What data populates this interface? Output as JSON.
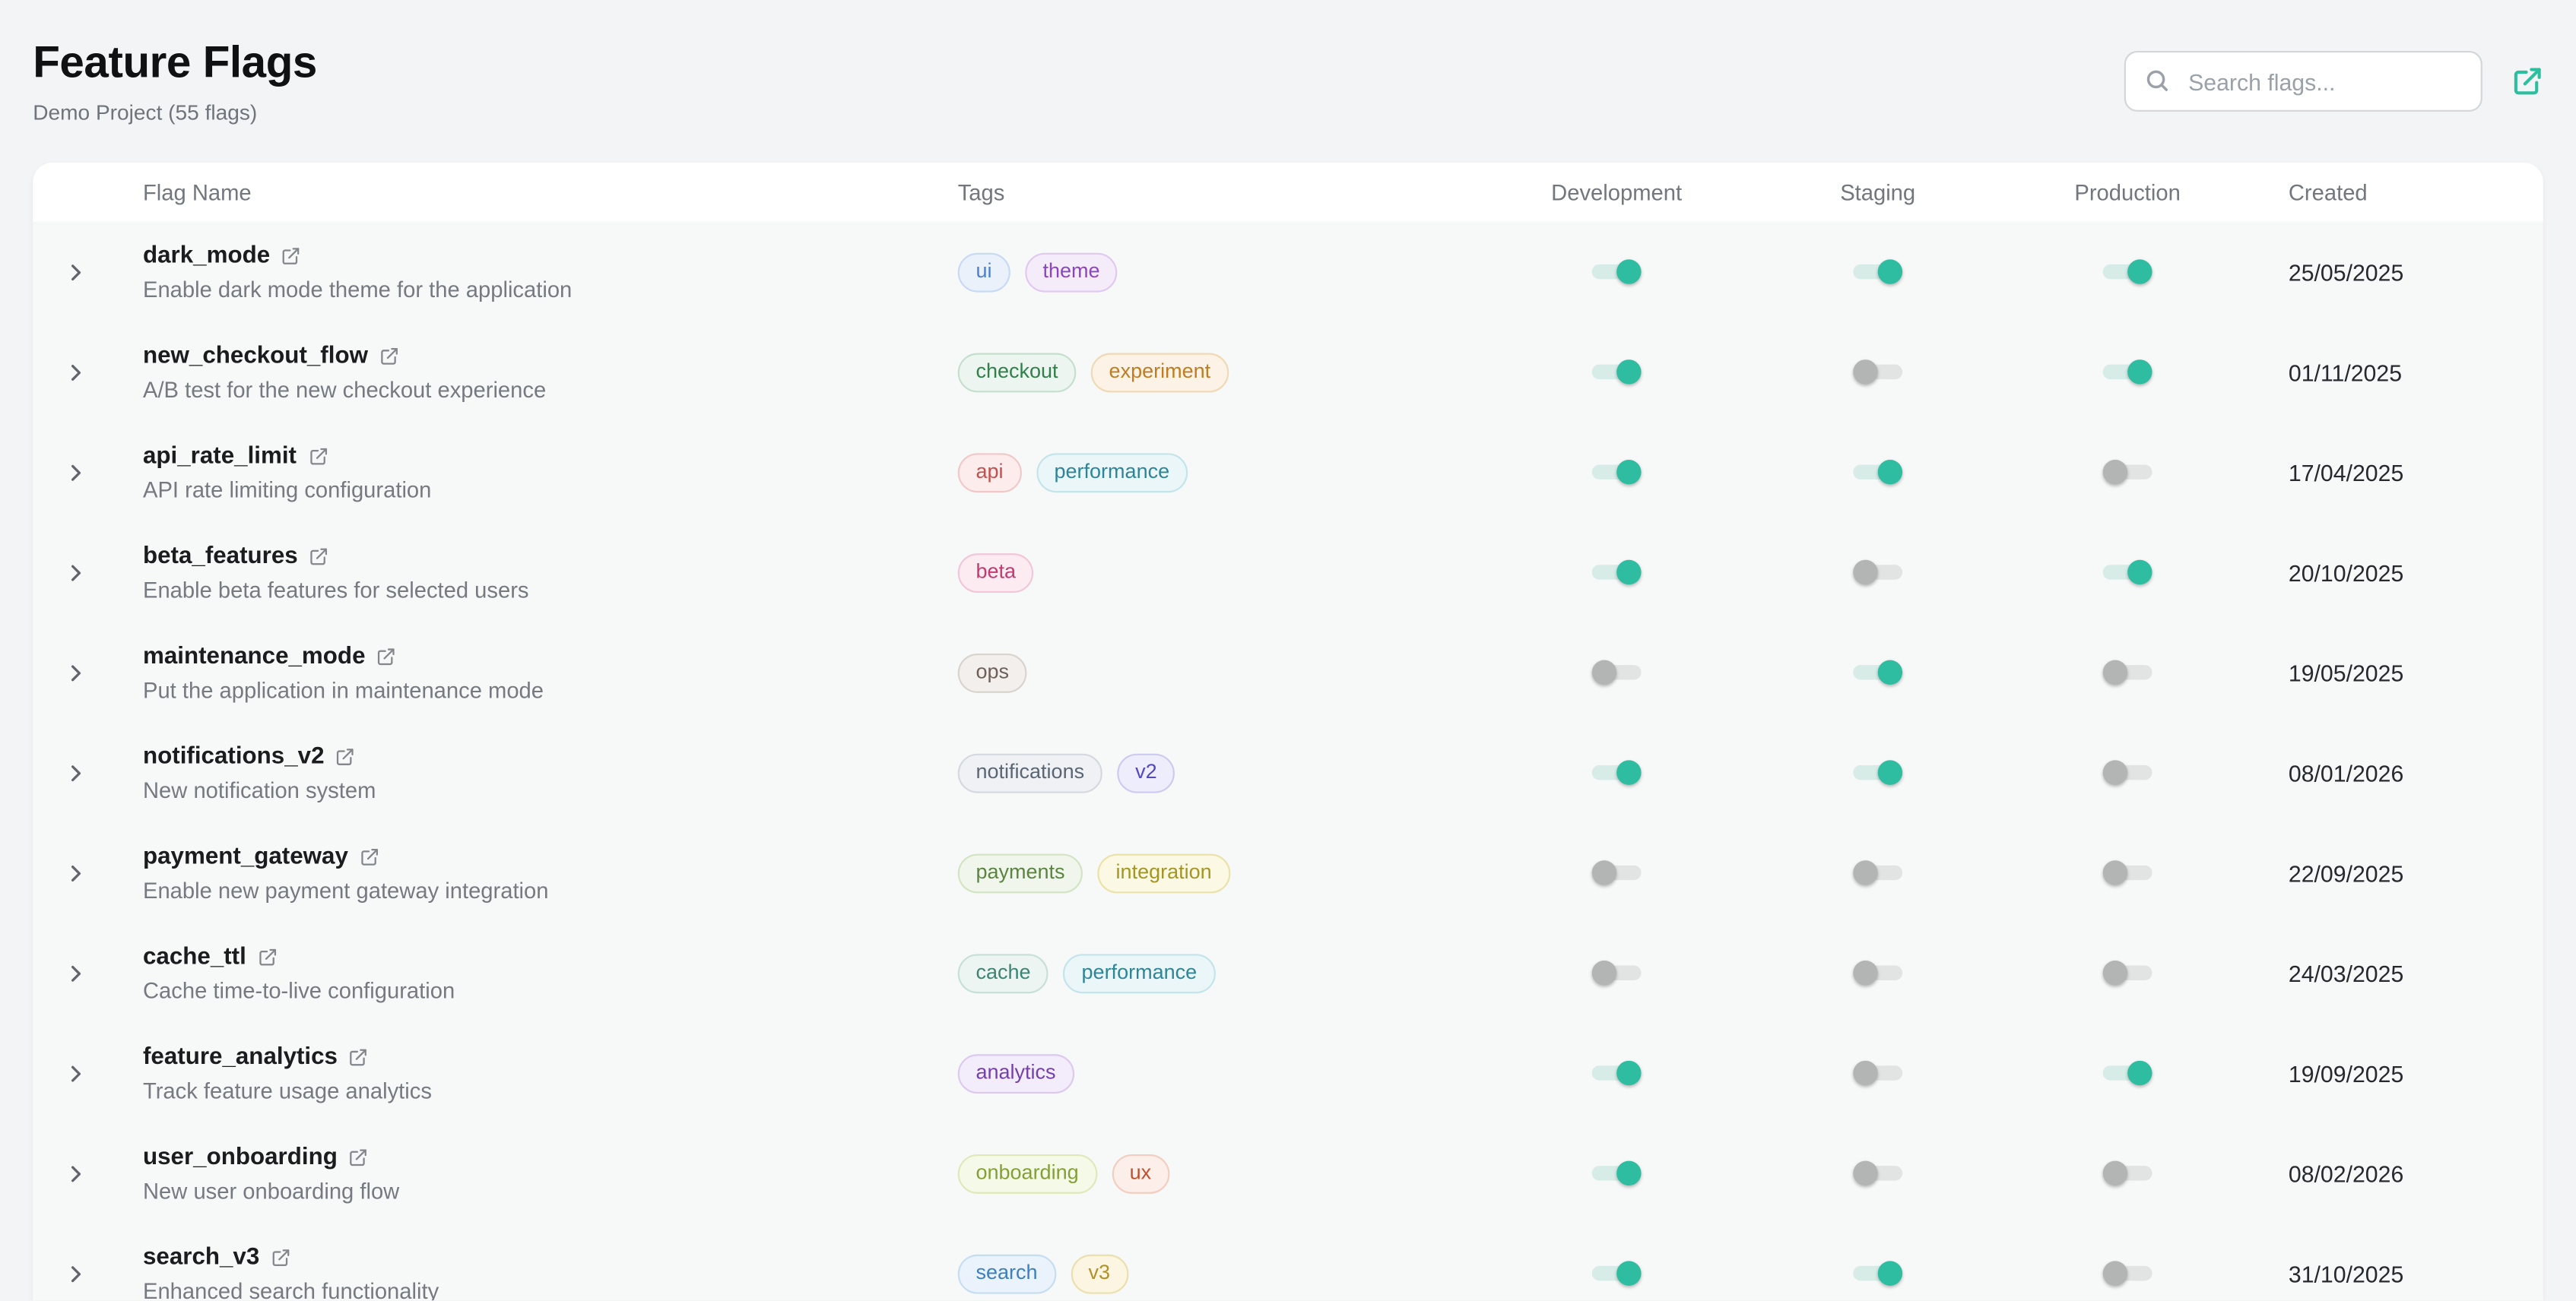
{
  "page": {
    "title": "Feature Flags",
    "subtitle": "Demo Project (55 flags)"
  },
  "search": {
    "placeholder": "Search flags...",
    "icon": "search-icon"
  },
  "header_actions": {
    "open_icon": "external-link-icon",
    "accent_color": "#2bbf9e"
  },
  "table": {
    "columns": [
      "Flag Name",
      "Tags",
      "Development",
      "Staging",
      "Production",
      "Created"
    ]
  },
  "toggle_colors": {
    "on_knob": "#2ebda0",
    "on_track": "#d8ece7",
    "off_knob": "#b3b4b4",
    "off_track": "#e2e3e3"
  },
  "tag_colors": {
    "ui": {
      "text": "#4b7fd0",
      "bg": "#eaf1fb",
      "border": "#c7d9f4"
    },
    "theme": {
      "text": "#8c44bf",
      "bg": "#f5ecfa",
      "border": "#e0c8f0"
    },
    "checkout": {
      "text": "#31804a",
      "bg": "#ecf5ef",
      "border": "#c4e0cd"
    },
    "experiment": {
      "text": "#bf7c22",
      "bg": "#fcf3e6",
      "border": "#f0d9b4"
    },
    "api": {
      "text": "#c44f4f",
      "bg": "#fdecec",
      "border": "#f2c7c7"
    },
    "performance": {
      "text": "#2f8598",
      "bg": "#eaf6f8",
      "border": "#c2e4ea"
    },
    "beta": {
      "text": "#c23a70",
      "bg": "#fcecf2",
      "border": "#f2c6d8"
    },
    "ops": {
      "text": "#6e6057",
      "bg": "#f2efed",
      "border": "#d9d3ce"
    },
    "notifications": {
      "text": "#5a6673",
      "bg": "#eff1f4",
      "border": "#d4d9df"
    },
    "v2": {
      "text": "#5248c0",
      "bg": "#eeedfb",
      "border": "#cdcaf2"
    },
    "payments": {
      "text": "#5a8440",
      "bg": "#f0f6eb",
      "border": "#d2e4c3"
    },
    "integration": {
      "text": "#a59623",
      "bg": "#fbf9e3",
      "border": "#eae2a8"
    },
    "cache": {
      "text": "#3d8472",
      "bg": "#ecf5f1",
      "border": "#c6e0d6"
    },
    "analytics": {
      "text": "#7440ad",
      "bg": "#f3ecfa",
      "border": "#dcc9ef"
    },
    "onboarding": {
      "text": "#83a037",
      "bg": "#f5f9e8",
      "border": "#dfe9b8"
    },
    "ux": {
      "text": "#c0502f",
      "bg": "#fceee9",
      "border": "#f2cdc0"
    },
    "search": {
      "text": "#3c7fc0",
      "bg": "#eaf3fb",
      "border": "#c5ddf2"
    },
    "v3": {
      "text": "#b3912a",
      "bg": "#fbf5e2",
      "border": "#ecdfae"
    }
  },
  "rows": [
    {
      "name": "dark_mode",
      "description": "Enable dark mode theme for the application",
      "tags": [
        "ui",
        "theme"
      ],
      "development": true,
      "staging": true,
      "production": true,
      "created": "25/05/2025"
    },
    {
      "name": "new_checkout_flow",
      "description": "A/B test for the new checkout experience",
      "tags": [
        "checkout",
        "experiment"
      ],
      "development": true,
      "staging": false,
      "production": true,
      "created": "01/11/2025"
    },
    {
      "name": "api_rate_limit",
      "description": "API rate limiting configuration",
      "tags": [
        "api",
        "performance"
      ],
      "development": true,
      "staging": true,
      "production": false,
      "created": "17/04/2025"
    },
    {
      "name": "beta_features",
      "description": "Enable beta features for selected users",
      "tags": [
        "beta"
      ],
      "development": true,
      "staging": false,
      "production": true,
      "created": "20/10/2025"
    },
    {
      "name": "maintenance_mode",
      "description": "Put the application in maintenance mode",
      "tags": [
        "ops"
      ],
      "development": false,
      "staging": true,
      "production": false,
      "created": "19/05/2025"
    },
    {
      "name": "notifications_v2",
      "description": "New notification system",
      "tags": [
        "notifications",
        "v2"
      ],
      "development": true,
      "staging": true,
      "production": false,
      "created": "08/01/2026"
    },
    {
      "name": "payment_gateway",
      "description": "Enable new payment gateway integration",
      "tags": [
        "payments",
        "integration"
      ],
      "development": false,
      "staging": false,
      "production": false,
      "created": "22/09/2025"
    },
    {
      "name": "cache_ttl",
      "description": "Cache time-to-live configuration",
      "tags": [
        "cache",
        "performance"
      ],
      "development": false,
      "staging": false,
      "production": false,
      "created": "24/03/2025"
    },
    {
      "name": "feature_analytics",
      "description": "Track feature usage analytics",
      "tags": [
        "analytics"
      ],
      "development": true,
      "staging": false,
      "production": true,
      "created": "19/09/2025"
    },
    {
      "name": "user_onboarding",
      "description": "New user onboarding flow",
      "tags": [
        "onboarding",
        "ux"
      ],
      "development": true,
      "staging": false,
      "production": false,
      "created": "08/02/2026"
    },
    {
      "name": "search_v3",
      "description": "Enhanced search functionality",
      "tags": [
        "search",
        "v3"
      ],
      "development": true,
      "staging": true,
      "production": false,
      "created": "31/10/2025"
    }
  ]
}
